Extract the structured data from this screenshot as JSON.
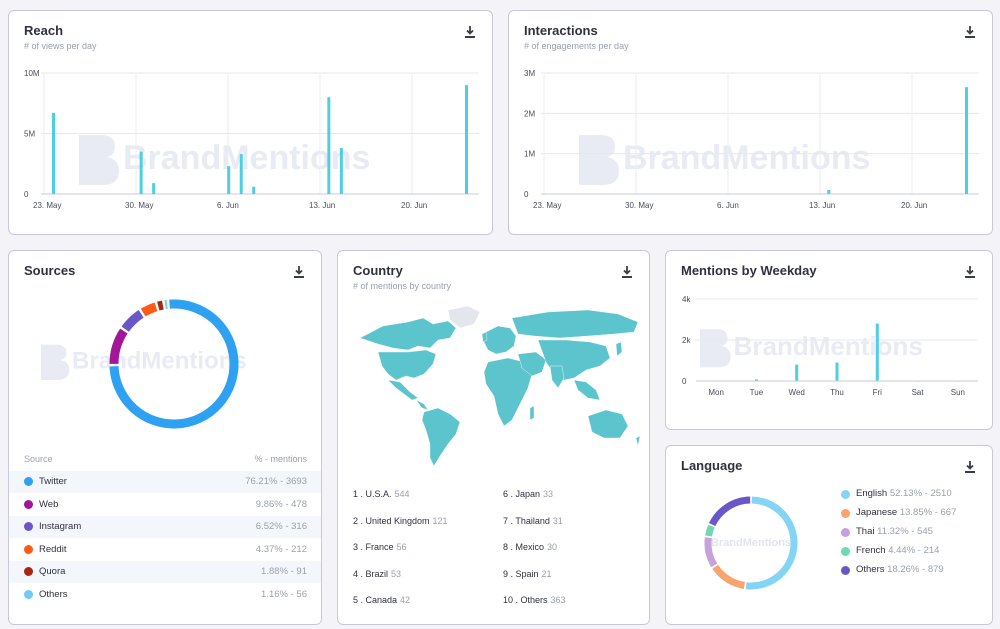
{
  "download_icon": "download-icon",
  "watermark_text": "BrandMentions",
  "reach": {
    "title": "Reach",
    "subtitle": "# of views per day",
    "chart_data": {
      "type": "bar",
      "title": "Reach",
      "subtitle": "# of views per day",
      "yticks": [
        "10M",
        "5M",
        "0"
      ],
      "ylim": [
        0,
        10000000
      ],
      "xticks": [
        "23. May",
        "30. May",
        "6. Jun",
        "13. Jun",
        "20. Jun"
      ],
      "x_start": "2021-05-23",
      "x_end": "2021-06-27",
      "x": [
        "2021-05-24",
        "2021-05-31",
        "2021-06-01",
        "2021-06-07",
        "2021-06-08",
        "2021-06-09",
        "2021-06-15",
        "2021-06-16",
        "2021-06-26"
      ],
      "values": [
        6700000,
        3500000,
        900000,
        2300000,
        3300000,
        600000,
        8000000,
        3800000,
        9000000
      ],
      "color": "#4dcfe3"
    }
  },
  "interactions": {
    "title": "Interactions",
    "subtitle": "# of engagements per day",
    "chart_data": {
      "type": "bar",
      "title": "Interactions",
      "subtitle": "# of engagements per day",
      "yticks": [
        "3M",
        "2M",
        "1M",
        "0"
      ],
      "ylim": [
        0,
        3000000
      ],
      "xticks": [
        "23. May",
        "30. May",
        "6. Jun",
        "13. Jun",
        "20. Jun"
      ],
      "x_start": "2021-05-23",
      "x_end": "2021-06-27",
      "x": [
        "2021-06-15",
        "2021-06-26"
      ],
      "values": [
        100000,
        2650000
      ],
      "color": "#4dcfe3"
    }
  },
  "sources": {
    "title": "Sources",
    "col_source": "Source",
    "col_mentions": "% - mentions",
    "chart_data": {
      "type": "pie",
      "donut": true,
      "categories": [
        "Twitter",
        "Web",
        "Instagram",
        "Reddit",
        "Quora",
        "Others"
      ],
      "values": [
        76.21,
        9.86,
        6.52,
        4.37,
        1.88,
        1.16
      ],
      "colors": [
        "#2ea1f3",
        "#a3169a",
        "#6a56c9",
        "#ff5b14",
        "#a52714",
        "#72cbf6"
      ]
    },
    "rows": [
      {
        "name": "Twitter",
        "value": "76.21% - 3693",
        "color": "#2ea1f3"
      },
      {
        "name": "Web",
        "value": "9.86% - 478",
        "color": "#a3169a"
      },
      {
        "name": "Instagram",
        "value": "6.52% - 316",
        "color": "#6a56c9"
      },
      {
        "name": "Reddit",
        "value": "4.37% - 212",
        "color": "#ff5b14"
      },
      {
        "name": "Quora",
        "value": "1.88% - 91",
        "color": "#a52714"
      },
      {
        "name": "Others",
        "value": "1.16% - 56",
        "color": "#72cbf6"
      }
    ]
  },
  "country": {
    "title": "Country",
    "subtitle": "# of mentions by country",
    "map_color": "#5bc4cd",
    "items": [
      {
        "label": "1 . U.S.A.",
        "count": "544"
      },
      {
        "label": "2 . United Kingdom",
        "count": "121"
      },
      {
        "label": "3 . France",
        "count": "56"
      },
      {
        "label": "4 . Brazil",
        "count": "53"
      },
      {
        "label": "5 . Canada",
        "count": "42"
      },
      {
        "label": "6 . Japan",
        "count": "33"
      },
      {
        "label": "7 . Thailand",
        "count": "31"
      },
      {
        "label": "8 . Mexico",
        "count": "30"
      },
      {
        "label": "9 . Spain",
        "count": "21"
      },
      {
        "label": "10 . Others",
        "count": "363"
      }
    ]
  },
  "weekday": {
    "title": "Mentions by Weekday",
    "chart_data": {
      "type": "bar",
      "title": "Mentions by Weekday",
      "yticks": [
        "4k",
        "2k",
        "0"
      ],
      "ylim": [
        0,
        4000
      ],
      "categories": [
        "Mon",
        "Tue",
        "Wed",
        "Thu",
        "Fri",
        "Sat",
        "Sun"
      ],
      "values": [
        20,
        80,
        800,
        900,
        2800,
        10,
        10
      ],
      "color": "#4dcfe3"
    }
  },
  "language": {
    "title": "Language",
    "chart_data": {
      "type": "pie",
      "donut": true,
      "categories": [
        "English",
        "Japanese",
        "Thai",
        "French",
        "Others"
      ],
      "values": [
        52.13,
        13.85,
        11.32,
        4.44,
        18.26
      ],
      "colors": [
        "#84d4f5",
        "#f8a46c",
        "#c8a0dc",
        "#6fd9b3",
        "#6a56c9"
      ]
    },
    "rows": [
      {
        "name": "English",
        "value": "52.13% - 2510",
        "color": "#84d4f5"
      },
      {
        "name": "Japanese",
        "value": "13.85% - 667",
        "color": "#f8a46c"
      },
      {
        "name": "Thai",
        "value": "11.32% - 545",
        "color": "#c8a0dc"
      },
      {
        "name": "French",
        "value": "4.44% - 214",
        "color": "#6fd9b3"
      },
      {
        "name": "Others",
        "value": "18.26% - 879",
        "color": "#6a56c9"
      }
    ]
  }
}
